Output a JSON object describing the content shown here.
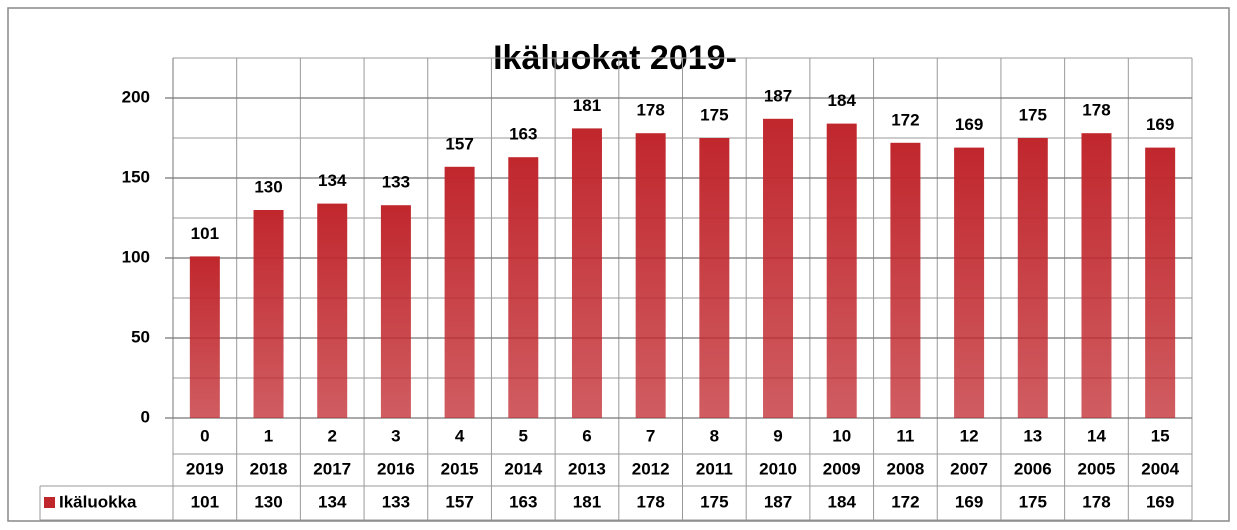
{
  "chart_data": {
    "type": "bar",
    "title": "Ikäluokat 2019-",
    "categories": [
      "0",
      "1",
      "2",
      "3",
      "4",
      "5",
      "6",
      "7",
      "8",
      "9",
      "10",
      "11",
      "12",
      "13",
      "14",
      "15"
    ],
    "category_years": [
      "2019",
      "2018",
      "2017",
      "2016",
      "2015",
      "2014",
      "2013",
      "2012",
      "2011",
      "2010",
      "2009",
      "2008",
      "2007",
      "2006",
      "2005",
      "2004"
    ],
    "series": [
      {
        "name": "Ikäluokka",
        "color": "#c0272d",
        "values": [
          101,
          130,
          134,
          133,
          157,
          163,
          181,
          178,
          175,
          187,
          184,
          172,
          169,
          175,
          178,
          169
        ]
      }
    ],
    "ylim": [
      0,
      225
    ],
    "yticks": [
      0,
      50,
      100,
      150,
      200
    ],
    "minor_yticks": [
      25,
      75,
      125,
      175,
      225
    ],
    "grid": true,
    "data_table": true
  }
}
